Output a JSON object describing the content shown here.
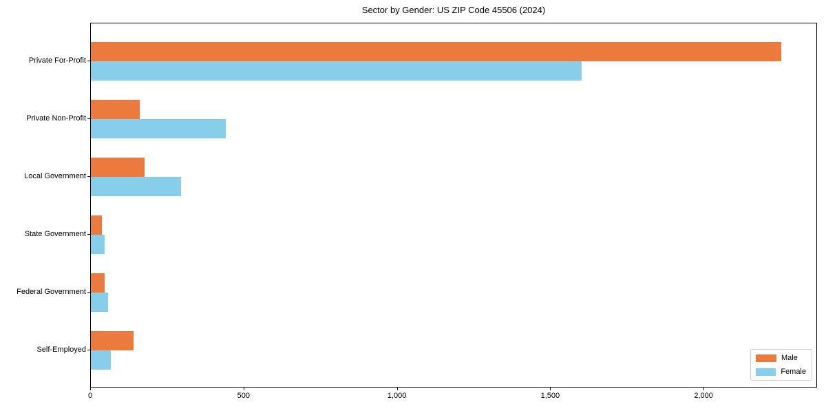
{
  "chart_data": {
    "type": "bar",
    "orientation": "horizontal",
    "title": "Sector by Gender: US ZIP Code 45506 (2024)",
    "categories": [
      "Private For-Profit",
      "Private Non-Profit",
      "Local Government",
      "State Government",
      "Federal Government",
      "Self-Employed"
    ],
    "series": [
      {
        "name": "Male",
        "color": "#EB7A3C",
        "values": [
          2250,
          160,
          175,
          35,
          45,
          140
        ]
      },
      {
        "name": "Female",
        "color": "#87CEEB",
        "values": [
          1600,
          440,
          295,
          45,
          55,
          65
        ]
      }
    ],
    "xlim": [
      0,
      2370
    ],
    "xticks": {
      "values": [
        0,
        500,
        1000,
        1500,
        2000
      ],
      "labels": [
        "0",
        "500",
        "1,000",
        "1,500",
        "2,000"
      ]
    },
    "ylabel": "",
    "xlabel": "",
    "grid": false,
    "legend_position": "lower right"
  }
}
